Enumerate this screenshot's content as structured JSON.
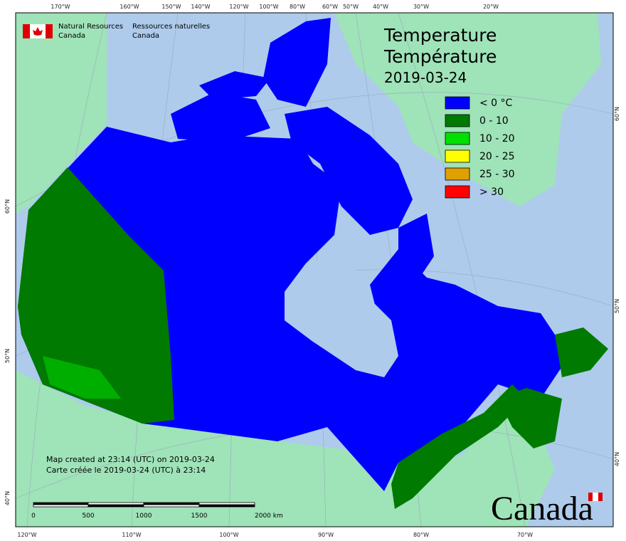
{
  "header": {
    "org_en": [
      "Natural Resources",
      "Canada"
    ],
    "org_fr": [
      "Ressources naturelles",
      "Canada"
    ]
  },
  "title": {
    "lines": [
      "Temperature",
      "Température",
      "2019-03-24"
    ]
  },
  "legend": [
    {
      "label": "< 0 °C",
      "color": "#0000ff"
    },
    {
      "label": "0 - 10",
      "color": "#007a00"
    },
    {
      "label": "10 - 20",
      "color": "#00e000"
    },
    {
      "label": "20 - 25",
      "color": "#ffff00"
    },
    {
      "label": "25 - 30",
      "color": "#e0a000"
    },
    {
      "label": "> 30",
      "color": "#ff0000"
    }
  ],
  "notes": [
    "Map created at 23:14 (UTC) on 2019-03-24",
    "Carte créée le 2019-03-24 (UTC) à 23:14"
  ],
  "scale_bar": [
    "0",
    "500",
    "1000",
    "1500",
    "2000 km"
  ],
  "graticule": {
    "top": [
      "170°W",
      "160°W",
      "150°W",
      "140°W",
      "120°W",
      "100°W",
      "80°W",
      "60°W",
      "50°W",
      "40°W",
      "30°W",
      "20°W"
    ],
    "bottom": [
      "120°W",
      "110°W",
      "100°W",
      "90°W",
      "80°W",
      "70°W"
    ],
    "left": [
      "60°N",
      "50°N",
      "40°N"
    ],
    "right": [
      "60°N",
      "50°N",
      "40°N"
    ]
  },
  "wordmark": "Canada"
}
